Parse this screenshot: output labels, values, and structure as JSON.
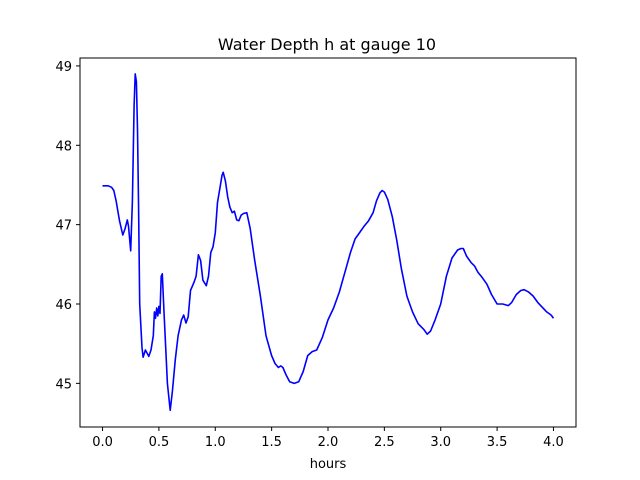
{
  "chart_data": {
    "type": "line",
    "title": "Water Depth h at gauge 10",
    "xlabel": "hours",
    "ylabel": "",
    "xlim": [
      -0.2,
      4.2
    ],
    "ylim": [
      44.45,
      49.1
    ],
    "xticks": [
      0.0,
      0.5,
      1.0,
      1.5,
      2.0,
      2.5,
      3.0,
      3.5,
      4.0
    ],
    "xtick_labels": [
      "0.0",
      "0.5",
      "1.0",
      "1.5",
      "2.0",
      "2.5",
      "3.0",
      "3.5",
      "4.0"
    ],
    "yticks": [
      45,
      46,
      47,
      48,
      49
    ],
    "ytick_labels": [
      "45",
      "46",
      "47",
      "48",
      "49"
    ],
    "grid": false,
    "legend": "none",
    "series": [
      {
        "color": "#0000ff",
        "points": [
          [
            0.0,
            47.49
          ],
          [
            0.05,
            47.49
          ],
          [
            0.08,
            47.47
          ],
          [
            0.1,
            47.43
          ],
          [
            0.12,
            47.3
          ],
          [
            0.15,
            47.05
          ],
          [
            0.18,
            46.87
          ],
          [
            0.2,
            46.95
          ],
          [
            0.22,
            47.06
          ],
          [
            0.23,
            46.98
          ],
          [
            0.25,
            46.67
          ],
          [
            0.265,
            47.3
          ],
          [
            0.28,
            48.5
          ],
          [
            0.29,
            48.9
          ],
          [
            0.3,
            48.8
          ],
          [
            0.31,
            48.2
          ],
          [
            0.32,
            47.2
          ],
          [
            0.33,
            46.0
          ],
          [
            0.35,
            45.45
          ],
          [
            0.36,
            45.33
          ],
          [
            0.38,
            45.42
          ],
          [
            0.41,
            45.34
          ],
          [
            0.43,
            45.42
          ],
          [
            0.45,
            45.6
          ],
          [
            0.46,
            45.9
          ],
          [
            0.47,
            45.82
          ],
          [
            0.48,
            45.95
          ],
          [
            0.49,
            45.85
          ],
          [
            0.5,
            45.97
          ],
          [
            0.51,
            45.88
          ],
          [
            0.52,
            46.35
          ],
          [
            0.53,
            46.38
          ],
          [
            0.545,
            45.9
          ],
          [
            0.56,
            45.45
          ],
          [
            0.575,
            45.0
          ],
          [
            0.6,
            44.66
          ],
          [
            0.62,
            44.9
          ],
          [
            0.645,
            45.3
          ],
          [
            0.67,
            45.6
          ],
          [
            0.7,
            45.8
          ],
          [
            0.72,
            45.86
          ],
          [
            0.74,
            45.76
          ],
          [
            0.76,
            45.84
          ],
          [
            0.78,
            46.17
          ],
          [
            0.81,
            46.27
          ],
          [
            0.83,
            46.35
          ],
          [
            0.85,
            46.62
          ],
          [
            0.87,
            46.55
          ],
          [
            0.89,
            46.3
          ],
          [
            0.92,
            46.23
          ],
          [
            0.94,
            46.35
          ],
          [
            0.96,
            46.65
          ],
          [
            0.98,
            46.72
          ],
          [
            1.0,
            46.9
          ],
          [
            1.02,
            47.28
          ],
          [
            1.04,
            47.45
          ],
          [
            1.06,
            47.62
          ],
          [
            1.07,
            47.66
          ],
          [
            1.09,
            47.55
          ],
          [
            1.11,
            47.35
          ],
          [
            1.13,
            47.22
          ],
          [
            1.15,
            47.15
          ],
          [
            1.17,
            47.17
          ],
          [
            1.19,
            47.06
          ],
          [
            1.21,
            47.05
          ],
          [
            1.23,
            47.12
          ],
          [
            1.25,
            47.14
          ],
          [
            1.28,
            47.15
          ],
          [
            1.31,
            46.95
          ],
          [
            1.35,
            46.55
          ],
          [
            1.4,
            46.1
          ],
          [
            1.45,
            45.6
          ],
          [
            1.5,
            45.35
          ],
          [
            1.53,
            45.25
          ],
          [
            1.56,
            45.2
          ],
          [
            1.58,
            45.22
          ],
          [
            1.6,
            45.2
          ],
          [
            1.63,
            45.1
          ],
          [
            1.66,
            45.02
          ],
          [
            1.7,
            45.0
          ],
          [
            1.74,
            45.02
          ],
          [
            1.78,
            45.15
          ],
          [
            1.82,
            45.35
          ],
          [
            1.86,
            45.4
          ],
          [
            1.9,
            45.42
          ],
          [
            1.95,
            45.58
          ],
          [
            2.0,
            45.8
          ],
          [
            2.05,
            45.95
          ],
          [
            2.1,
            46.15
          ],
          [
            2.15,
            46.4
          ],
          [
            2.2,
            46.65
          ],
          [
            2.24,
            46.82
          ],
          [
            2.28,
            46.9
          ],
          [
            2.32,
            46.98
          ],
          [
            2.36,
            47.05
          ],
          [
            2.4,
            47.15
          ],
          [
            2.43,
            47.3
          ],
          [
            2.46,
            47.4
          ],
          [
            2.48,
            47.43
          ],
          [
            2.5,
            47.41
          ],
          [
            2.53,
            47.32
          ],
          [
            2.57,
            47.1
          ],
          [
            2.61,
            46.8
          ],
          [
            2.65,
            46.45
          ],
          [
            2.7,
            46.1
          ],
          [
            2.75,
            45.9
          ],
          [
            2.8,
            45.75
          ],
          [
            2.85,
            45.68
          ],
          [
            2.88,
            45.62
          ],
          [
            2.91,
            45.66
          ],
          [
            2.95,
            45.8
          ],
          [
            3.0,
            46.0
          ],
          [
            3.05,
            46.35
          ],
          [
            3.1,
            46.58
          ],
          [
            3.15,
            46.68
          ],
          [
            3.18,
            46.7
          ],
          [
            3.2,
            46.7
          ],
          [
            3.23,
            46.6
          ],
          [
            3.27,
            46.52
          ],
          [
            3.3,
            46.48
          ],
          [
            3.33,
            46.4
          ],
          [
            3.37,
            46.33
          ],
          [
            3.41,
            46.25
          ],
          [
            3.45,
            46.12
          ],
          [
            3.5,
            46.0
          ],
          [
            3.55,
            46.0
          ],
          [
            3.6,
            45.98
          ],
          [
            3.63,
            46.02
          ],
          [
            3.67,
            46.12
          ],
          [
            3.71,
            46.17
          ],
          [
            3.74,
            46.18
          ],
          [
            3.78,
            46.15
          ],
          [
            3.82,
            46.1
          ],
          [
            3.86,
            46.02
          ],
          [
            3.9,
            45.96
          ],
          [
            3.94,
            45.9
          ],
          [
            3.98,
            45.86
          ],
          [
            4.0,
            45.82
          ]
        ]
      }
    ]
  }
}
